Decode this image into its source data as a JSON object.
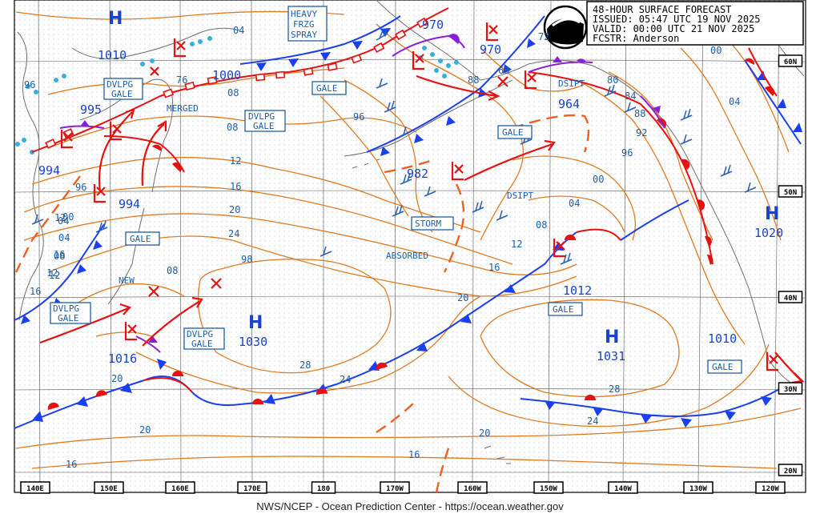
{
  "header": {
    "title": "48-HOUR SURFACE FORECAST",
    "issued": "ISSUED: 05:47 UTC 19 NOV 2025",
    "valid": "VALID:  00:00 UTC 21 NOV 2025",
    "forecaster": "FCSTR:  Anderson"
  },
  "footer": "NWS/NCEP - Ocean Prediction Center - https://ocean.weather.gov",
  "longitudes": [
    "140E",
    "150E",
    "160E",
    "170E",
    "180",
    "170W",
    "160W",
    "150W",
    "140W",
    "130W",
    "120W"
  ],
  "latitudes": [
    "60N",
    "50N",
    "40N",
    "30N",
    "20N"
  ],
  "highs": [
    {
      "symbol": "H",
      "pressure": "1010"
    },
    {
      "symbol": "H",
      "pressure": "1030"
    },
    {
      "symbol": "H",
      "pressure": "1031"
    },
    {
      "symbol": "H",
      "pressure": "1020"
    }
  ],
  "lows": [
    "995",
    "994",
    "994",
    "1000",
    "970",
    "970",
    "964",
    "982",
    "1016",
    "1012",
    "1010"
  ],
  "boxes": {
    "heavy_frzg_spray": [
      "HEAVY",
      "FRZG",
      "SPRAY"
    ],
    "dvlpg_gale_1": [
      "DVLPG",
      "GALE"
    ],
    "dvlpg_gale_2": [
      "DVLPG",
      "GALE"
    ],
    "dvlpg_gale_3": [
      "DVLPG",
      "GALE"
    ],
    "dvlpg_gale_4": [
      "DVLPG",
      "GALE"
    ],
    "gale_1": "GALE",
    "gale_2": "GALE",
    "gale_3": "GALE",
    "gale_4": "GALE",
    "gale_5": "GALE",
    "storm": "STORM"
  },
  "notes": {
    "merged": "MERGED",
    "dsipt_1": "DSIPT",
    "dsipt_2": "DSIPT",
    "new": "NEW",
    "absorbed": "ABSORBED"
  },
  "isobar_labels": [
    "04",
    "76",
    "08",
    "12",
    "16",
    "20",
    "24",
    "98",
    "08",
    "96",
    "88",
    "68",
    "72",
    "80",
    "84",
    "88",
    "92",
    "96",
    "00",
    "04",
    "08",
    "12",
    "16",
    "20",
    "28",
    "24",
    "28",
    "24",
    "20",
    "16",
    "20",
    "16",
    "96",
    "04",
    "12",
    "16",
    "12",
    "20",
    "00",
    "04",
    "08",
    "12",
    "16",
    "08",
    "96",
    "00",
    "04"
  ],
  "colors": {
    "isobar": "#e07a1e",
    "cold_front": "#1a3ff0",
    "warm_front": "#e81010",
    "occluded_front": "#8a1fd8",
    "label_blue": "#1f5fa8",
    "coast": "#7a7a7a",
    "wind_barb": "#2a5fb0"
  },
  "logo": "NOAA"
}
